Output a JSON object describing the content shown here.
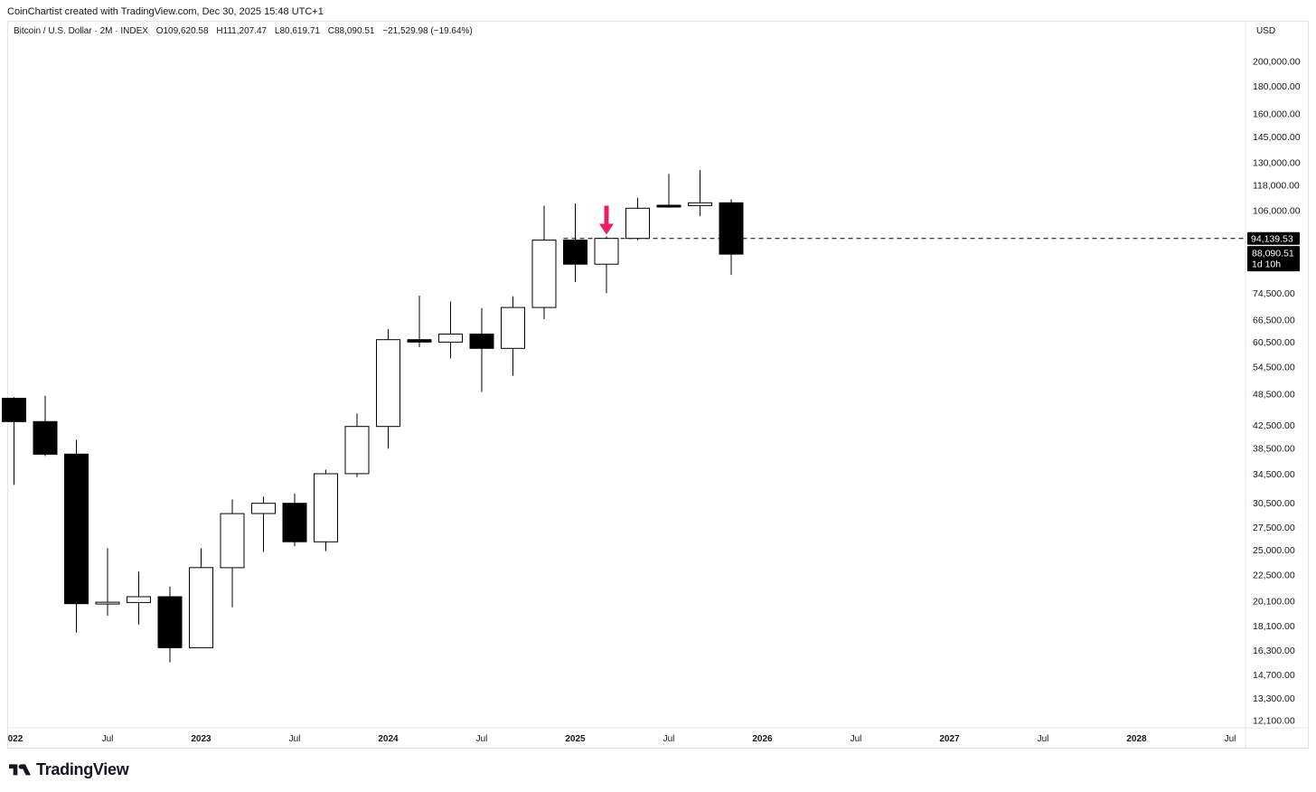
{
  "caption": "CoinChartist created with TradingView.com, Dec 30, 2025 15:48 UTC+1",
  "legend": {
    "symbol": "Bitcoin / U.S. Dollar · 2M · INDEX",
    "open": "O109,620.58",
    "high": "H111,207.47",
    "low": "L80,619.71",
    "close": "C88,090.51",
    "change": "−21,529.98 (−19.64%)"
  },
  "currency": "USD",
  "brand": "TradingView",
  "colors": {
    "bull_body": "#ffffff",
    "bear_body": "#000000",
    "wick": "#000000",
    "arrow": "#e91e63",
    "hline": "#000000",
    "price_tag_bg": "#000000",
    "price_tag_text": "#ffffff"
  },
  "chart_data": {
    "type": "candlestick",
    "title": "Bitcoin / U.S. Dollar · 2M · INDEX",
    "timeframe": "2M",
    "y_scale": "log",
    "ylim": [
      11500,
      230000
    ],
    "y_ticks": [
      "200,000.00",
      "180,000.00",
      "160,000.00",
      "145,000.00",
      "130,000.00",
      "118,000.00",
      "106,000.00",
      "74,500.00",
      "66,500.00",
      "60,500.00",
      "54,500.00",
      "48,500.00",
      "42,500.00",
      "38,500.00",
      "34,500.00",
      "30,500.00",
      "27,500.00",
      "25,000.00",
      "22,500.00",
      "20,100.00",
      "18,100.00",
      "16,300.00",
      "14,700.00",
      "13,300.00",
      "12,100.00"
    ],
    "x_ticks": [
      {
        "label": "022",
        "major": true,
        "index": -0.2
      },
      {
        "label": "Jul",
        "major": false,
        "index": 3
      },
      {
        "label": "2023",
        "major": true,
        "index": 6
      },
      {
        "label": "Jul",
        "major": false,
        "index": 9
      },
      {
        "label": "2024",
        "major": true,
        "index": 12
      },
      {
        "label": "Jul",
        "major": false,
        "index": 15
      },
      {
        "label": "2025",
        "major": true,
        "index": 18
      },
      {
        "label": "Jul",
        "major": false,
        "index": 21
      },
      {
        "label": "2026",
        "major": true,
        "index": 24
      },
      {
        "label": "Jul",
        "major": false,
        "index": 27
      },
      {
        "label": "2027",
        "major": true,
        "index": 30
      },
      {
        "label": "Jul",
        "major": false,
        "index": 33
      },
      {
        "label": "2028",
        "major": true,
        "index": 36
      },
      {
        "label": "Jul",
        "major": false,
        "index": 39
      }
    ],
    "candles": [
      {
        "period": "2022 Jan-Feb",
        "open": 47700,
        "high": 47900,
        "low": 33000,
        "close": 43200
      },
      {
        "period": "2022 Mar-Apr",
        "open": 43200,
        "high": 48200,
        "low": 37300,
        "close": 37600
      },
      {
        "period": "2022 May-Jun",
        "open": 37600,
        "high": 40000,
        "low": 17600,
        "close": 19900
      },
      {
        "period": "2022 Jul-Aug",
        "open": 19900,
        "high": 25200,
        "low": 18900,
        "close": 20000
      },
      {
        "period": "2022 Sep-Oct",
        "open": 20000,
        "high": 22800,
        "low": 18200,
        "close": 20500
      },
      {
        "period": "2022 Nov-Dec",
        "open": 20500,
        "high": 21400,
        "low": 15500,
        "close": 16500
      },
      {
        "period": "2023 Jan-Feb",
        "open": 16500,
        "high": 25200,
        "low": 16500,
        "close": 23200
      },
      {
        "period": "2023 Mar-Apr",
        "open": 23200,
        "high": 31000,
        "low": 19600,
        "close": 29200
      },
      {
        "period": "2023 May-Jun",
        "open": 29200,
        "high": 31400,
        "low": 24800,
        "close": 30500
      },
      {
        "period": "2023 Jul-Aug",
        "open": 30500,
        "high": 31800,
        "low": 25400,
        "close": 25900
      },
      {
        "period": "2023 Sep-Oct",
        "open": 25900,
        "high": 35200,
        "low": 24900,
        "close": 34600
      },
      {
        "period": "2023 Nov-Dec",
        "open": 34600,
        "high": 44700,
        "low": 34100,
        "close": 42300
      },
      {
        "period": "2024 Jan-Feb",
        "open": 42300,
        "high": 64000,
        "low": 38500,
        "close": 61200
      },
      {
        "period": "2024 Mar-Apr",
        "open": 61200,
        "high": 73800,
        "low": 59300,
        "close": 60600
      },
      {
        "period": "2024 May-Jun",
        "open": 60600,
        "high": 72000,
        "low": 56500,
        "close": 62700
      },
      {
        "period": "2024 Jul-Aug",
        "open": 62700,
        "high": 70000,
        "low": 49000,
        "close": 59000
      },
      {
        "period": "2024 Sep-Oct",
        "open": 59000,
        "high": 73600,
        "low": 52500,
        "close": 70200
      },
      {
        "period": "2024 Nov-Dec",
        "open": 70200,
        "high": 108300,
        "low": 66800,
        "close": 93500
      },
      {
        "period": "2025 Jan-Feb",
        "open": 93500,
        "high": 109300,
        "low": 78200,
        "close": 84400
      },
      {
        "period": "2025 Mar-Apr",
        "open": 84400,
        "high": 95000,
        "low": 74600,
        "close": 94200
      },
      {
        "period": "2025 May-Jun",
        "open": 94200,
        "high": 111900,
        "low": 93500,
        "close": 107100
      },
      {
        "period": "2025 Jul-Aug",
        "open": 108200,
        "high": 124000,
        "low": 107300,
        "close": 107900
      },
      {
        "period": "2025 Sep-Oct",
        "open": 108300,
        "high": 126000,
        "low": 103500,
        "close": 109600
      },
      {
        "period": "2025 Nov-Dec",
        "open": 109620.58,
        "high": 111207.47,
        "low": 80619.71,
        "close": 88090.51
      }
    ],
    "horizontal_line": {
      "price": 94139.53,
      "label": "94,139.53",
      "from_index": 18,
      "style": "dashed"
    },
    "last_price": {
      "price": 88090.51,
      "label": "88,090.51",
      "countdown": "1d 10h"
    },
    "annotations": [
      {
        "type": "arrow-down",
        "candle_index": 19,
        "color": "#e91e63"
      }
    ]
  }
}
